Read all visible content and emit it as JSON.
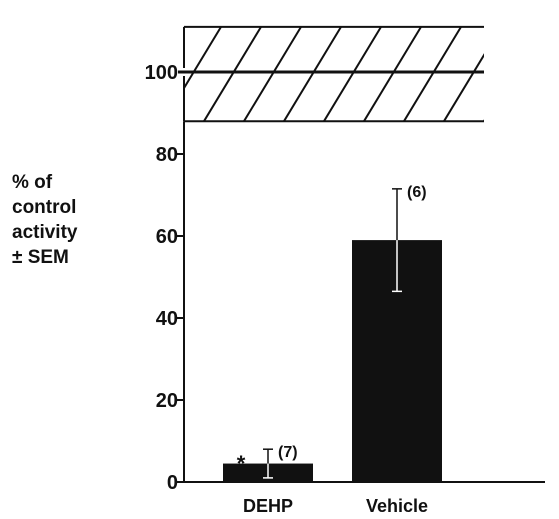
{
  "chart_data": {
    "type": "bar",
    "categories": [
      "DEHP",
      "Vehicle"
    ],
    "values": [
      4.5,
      59
    ],
    "error": [
      3.5,
      12.5
    ],
    "n_labels": [
      "(7)",
      "(6)"
    ],
    "significance": [
      "*",
      ""
    ],
    "ylabel_lines": [
      "%  of",
      "control",
      "activity",
      "±  SEM"
    ],
    "yticks": [
      0,
      20,
      40,
      60,
      80,
      100
    ],
    "ylim": [
      0,
      111
    ],
    "control_band": [
      88,
      111
    ],
    "control_line": 100,
    "bar_color": "#111111"
  }
}
